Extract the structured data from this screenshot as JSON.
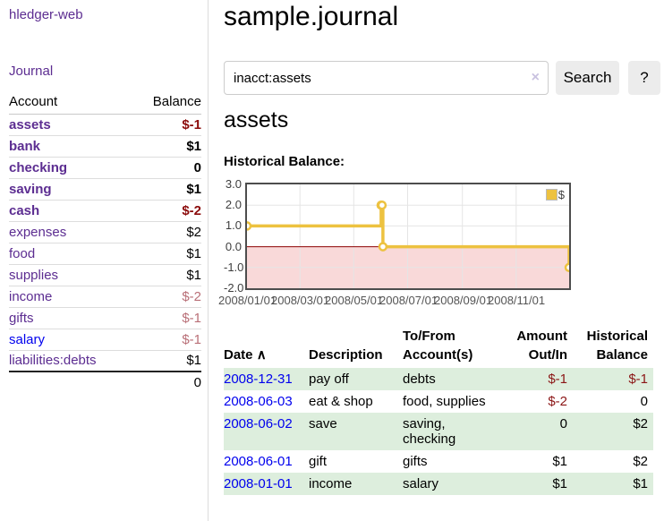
{
  "sidebar": {
    "brand": "hledger-web",
    "nav": {
      "journal": "Journal"
    },
    "accounts_table": {
      "headers": {
        "account": "Account",
        "balance": "Balance"
      },
      "accounts": [
        {
          "name": "assets",
          "level": 1,
          "bold": true,
          "balance": "$-1",
          "balance_style": "neg"
        },
        {
          "name": "bank",
          "level": 2,
          "bold": true,
          "balance": "$1",
          "balance_style": "pos"
        },
        {
          "name": "checking",
          "level": 3,
          "bold": true,
          "balance": "0",
          "balance_style": "pos"
        },
        {
          "name": "saving",
          "level": 3,
          "bold": true,
          "balance": "$1",
          "balance_style": "pos"
        },
        {
          "name": "cash",
          "level": 2,
          "bold": true,
          "balance": "$-2",
          "balance_style": "neg"
        },
        {
          "name": "expenses",
          "level": 1,
          "bold": false,
          "balance": "$2",
          "balance_style": "pos"
        },
        {
          "name": "food",
          "level": 2,
          "bold": false,
          "balance": "$1",
          "balance_style": "pos"
        },
        {
          "name": "supplies",
          "level": 2,
          "bold": false,
          "balance": "$1",
          "balance_style": "pos"
        },
        {
          "name": "income",
          "level": 1,
          "bold": false,
          "balance": "$-2",
          "balance_style": "neg-muted"
        },
        {
          "name": "gifts",
          "level": 2,
          "bold": false,
          "balance": "$-1",
          "balance_style": "neg-muted"
        },
        {
          "name": "salary",
          "level": 2,
          "bold": false,
          "balance": "$-1",
          "balance_style": "neg-muted",
          "link_style": "unvisited"
        },
        {
          "name": "liabilities:debts",
          "level": 1,
          "bold": false,
          "balance": "$1",
          "balance_style": "pos"
        }
      ],
      "total": "0"
    }
  },
  "header": {
    "title": "sample.journal"
  },
  "search": {
    "value": "inacct:assets",
    "clear_icon": "×",
    "button_label": "Search",
    "help_label": "?"
  },
  "account_page": {
    "heading": "assets",
    "chart_label": "Historical Balance:"
  },
  "chart_data": {
    "type": "line",
    "step": true,
    "title": "Historical Balance",
    "series": [
      {
        "name": "$",
        "color": "#edc240",
        "points": [
          [
            "2008-01-01",
            1
          ],
          [
            "2008-06-01",
            2
          ],
          [
            "2008-06-02",
            2
          ],
          [
            "2008-06-03",
            0
          ],
          [
            "2008-12-31",
            -1
          ]
        ]
      }
    ],
    "xrange": [
      "2008-01-01",
      "2008-12-31"
    ],
    "xticks": [
      "2008/01/01",
      "2008/03/01",
      "2008/05/01",
      "2008/07/01",
      "2008/09/01",
      "2008/11/01"
    ],
    "yticks": [
      "3.0",
      "2.0",
      "1.0",
      "0.0",
      "-1.0",
      "-2.0"
    ],
    "ylim": [
      -2,
      3
    ],
    "grid": true,
    "legend": {
      "label": "$",
      "position": "top-right"
    },
    "colors": {
      "gridline": "#e5e5e5",
      "border": "#4d4d4d",
      "zero_line": "#8b0000",
      "negative_region_fill": "#f9d9d9",
      "marker_fill": "#ffffff"
    }
  },
  "register_table": {
    "headers": {
      "date": "Date",
      "sort_icon": "∧",
      "description": "Description",
      "account": "To/From Account(s)",
      "amount": "Amount Out/In",
      "balance": "Historical Balance"
    },
    "rows": [
      {
        "date": "2008-12-31",
        "description": "pay off",
        "accounts": "debts",
        "amount": "$-1",
        "amount_neg": true,
        "balance": "$-1",
        "balance_neg": true
      },
      {
        "date": "2008-06-03",
        "description": "eat & shop",
        "accounts": "food, supplies",
        "amount": "$-2",
        "amount_neg": true,
        "balance": "0",
        "balance_neg": false
      },
      {
        "date": "2008-06-02",
        "description": "save",
        "accounts": "saving, checking",
        "amount": "0",
        "amount_neg": false,
        "balance": "$2",
        "balance_neg": false
      },
      {
        "date": "2008-06-01",
        "description": "gift",
        "accounts": "gifts",
        "amount": "$1",
        "amount_neg": false,
        "balance": "$2",
        "balance_neg": false
      },
      {
        "date": "2008-01-01",
        "description": "income",
        "accounts": "salary",
        "amount": "$1",
        "amount_neg": false,
        "balance": "$1",
        "balance_neg": false
      }
    ]
  }
}
